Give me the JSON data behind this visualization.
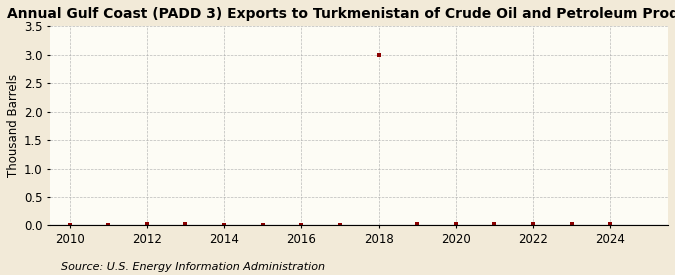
{
  "title": "Annual Gulf Coast (PADD 3) Exports to Turkmenistan of Crude Oil and Petroleum Products",
  "ylabel": "Thousand Barrels",
  "source": "Source: U.S. Energy Information Administration",
  "background_color": "#f2ead8",
  "plot_bg_color": "#fdfcf5",
  "years": [
    2010,
    2011,
    2012,
    2013,
    2014,
    2015,
    2016,
    2017,
    2018,
    2019,
    2020,
    2021,
    2022,
    2023,
    2024
  ],
  "values": [
    0,
    0,
    0.02,
    0.02,
    0,
    0,
    0,
    0,
    3.0,
    0.02,
    0.02,
    0.02,
    0.02,
    0.02,
    0.02
  ],
  "marker_color": "#8b0000",
  "marker_size": 3,
  "xlim": [
    2009.5,
    2025.5
  ],
  "ylim": [
    0,
    3.5
  ],
  "yticks": [
    0.0,
    0.5,
    1.0,
    1.5,
    2.0,
    2.5,
    3.0,
    3.5
  ],
  "xticks": [
    2010,
    2012,
    2014,
    2016,
    2018,
    2020,
    2022,
    2024
  ],
  "title_fontsize": 10,
  "axis_fontsize": 8.5,
  "source_fontsize": 8
}
